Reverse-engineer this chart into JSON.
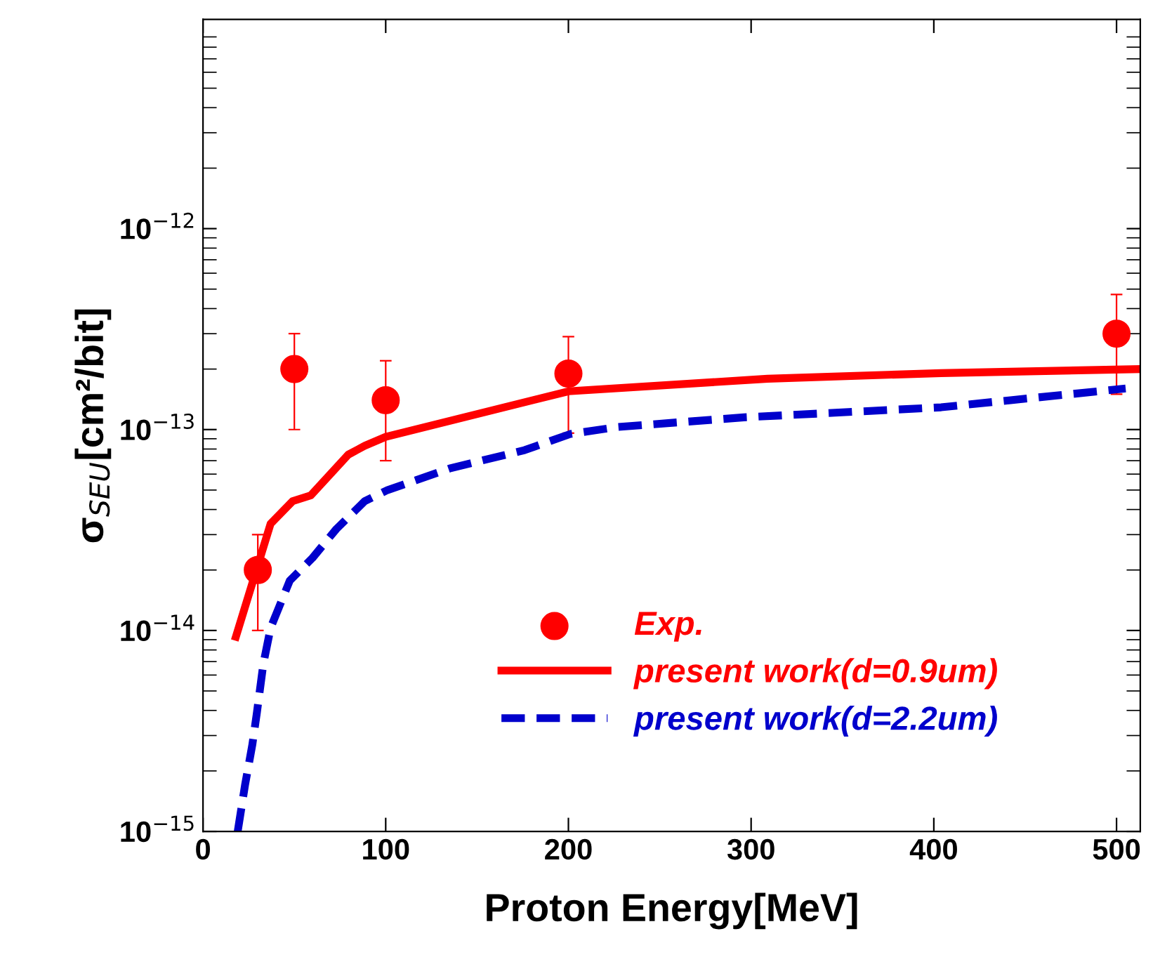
{
  "chart_data": {
    "type": "line",
    "xlabel": "Proton Energy[MeV]",
    "ylabel": "σ$_{SEU}$[cm²/bit]",
    "log": "y",
    "xlim": [
      0,
      513
    ],
    "xticks": [
      0,
      100,
      200,
      300,
      400,
      500
    ],
    "ylim": [
      1e-15,
      1.1e-11
    ],
    "yticks": [
      {
        "value": 1e-15,
        "label": "10$^{−15}$"
      },
      {
        "value": 1e-14,
        "label": "10$^{−14}$"
      },
      {
        "value": 1e-13,
        "label": "10$^{−13}$"
      },
      {
        "value": 1e-12,
        "label": "10$^{−12}$"
      }
    ],
    "grid": false,
    "legend": "bottom right",
    "series": [
      {
        "name": "Exp.",
        "type": "scatter",
        "color": "#ff0000",
        "marker": "circle",
        "x": [
          30,
          50,
          100,
          200,
          500
        ],
        "values": [
          2e-14,
          2e-13,
          1.4e-13,
          1.9e-13,
          3e-13
        ],
        "errors": [
          [
            1e-14,
            3e-14
          ],
          [
            1e-13,
            3e-13
          ],
          [
            7e-14,
            2.2e-13
          ],
          [
            9.6e-14,
            2.9e-13
          ],
          [
            1.5e-13,
            4.7e-13
          ]
        ]
      },
      {
        "name": "present work(d=0.9um)",
        "color": "#ff0000",
        "line_style": "solid",
        "x": [
          18,
          37,
          49,
          59,
          79.5,
          88.5,
          100,
          200,
          309,
          404,
          513
        ],
        "values": [
          9.3e-15,
          3.4e-14,
          4.4e-14,
          4.7e-14,
          7.5e-14,
          8.3e-14,
          9.2e-14,
          1.55e-13,
          1.79e-13,
          1.91e-13,
          2e-13
        ]
      },
      {
        "name": "present work(d=2.2um)",
        "color": "#0000cc",
        "line_style": "dashed",
        "x": [
          19,
          23,
          27,
          29.5,
          33,
          37,
          47.5,
          60,
          73,
          88.5,
          101,
          135,
          176,
          201,
          227,
          296,
          404,
          442,
          505
        ],
        "values": [
          1e-15,
          1.7e-15,
          2.7e-15,
          3.9e-15,
          6.8e-15,
          1.03e-14,
          1.77e-14,
          2.3e-14,
          3.2e-14,
          4.4e-14,
          5e-14,
          6.4e-14,
          7.9e-14,
          9.5e-14,
          1.03e-13,
          1.15e-13,
          1.29e-13,
          1.4e-13,
          1.6e-13
        ]
      }
    ]
  }
}
